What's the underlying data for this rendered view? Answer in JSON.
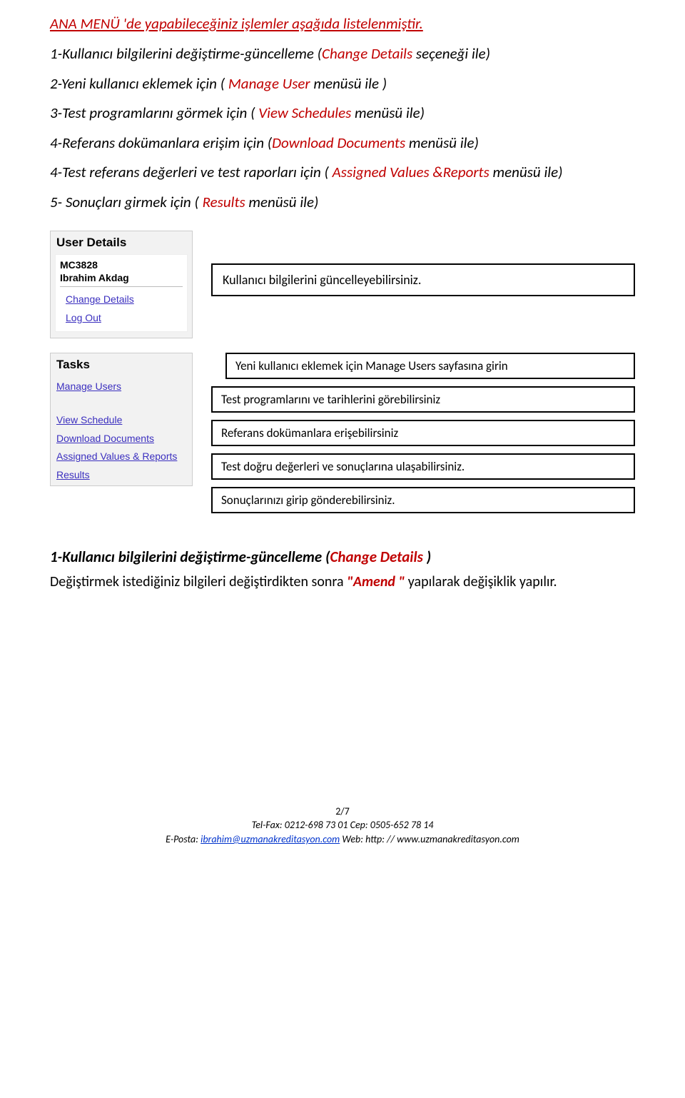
{
  "title": " ANA MENÜ 'de yapabileceğiniz işlemler aşağıda listelenmiştir.",
  "lines": [
    {
      "pre": "1-Kullanıcı bilgilerini değiştirme-güncelleme (",
      "hl": "Change Details",
      "post": "  seçeneği ile)"
    },
    {
      "pre": "2-Yeni kullanıcı eklemek için ( ",
      "hl": "Manage User",
      "post": " menüsü ile )"
    },
    {
      "pre": "3-Test programlarını görmek için  ( ",
      "hl": "View Schedules",
      "post": " menüsü ile)"
    },
    {
      "pre": "4-Referans  dokümanlara erişim için (",
      "hl": "Download  Documents",
      "post": "  menüsü ile)"
    },
    {
      "pre": "4-Test referans değerleri ve test raporları için  ( ",
      "hl": "Assigned Values &Reports",
      "post": " menüsü ile)"
    },
    {
      "pre": "5- Sonuçları girmek için (  ",
      "hl": "Results",
      "post": " menüsü ile)"
    }
  ],
  "panel1": {
    "header": "User Details",
    "code": "MC3828",
    "name": "Ibrahim Akdag",
    "links": [
      "Change Details",
      "Log Out"
    ]
  },
  "callout_user": "Kullanıcı bilgilerini güncelleyebilirsiniz.",
  "panel2": {
    "header": "Tasks",
    "links": [
      "Manage Users",
      "View Schedule",
      "Download Documents",
      "Assigned Values & Reports",
      "Results"
    ]
  },
  "callouts_tasks": [
    "Yeni kullanıcı eklemek için Manage  Users      sayfasına girin",
    "Test programlarını ve tarihlerini görebilirsiniz",
    "Referans dokümanlara erişebilirsiniz",
    "Test  doğru değerleri ve sonuçlarına ulaşabilirsiniz.",
    "Sonuçlarınızı girip gönderebilirsiniz."
  ],
  "section": {
    "pre": "1-Kullanıcı bilgilerini değiştirme-güncelleme (",
    "hl": "Change Details ",
    "post": ")"
  },
  "note": {
    "pre": "Değiştirmek istediğiniz bilgileri değiştirdikten sonra  ",
    "hl": "\"Amend \"",
    "post": "    yapılarak değişiklik yapılır."
  },
  "footer": {
    "page": "2/7",
    "tel": "Tel-Fax: 0212-698 73 01 Cep: 0505-652 78 14",
    "email_label": "E-Posta: ",
    "email": "ibrahim@uzmanakreditasyon.com",
    "web_label": "    Web: http: // www.uzmanakreditasyon.com"
  }
}
